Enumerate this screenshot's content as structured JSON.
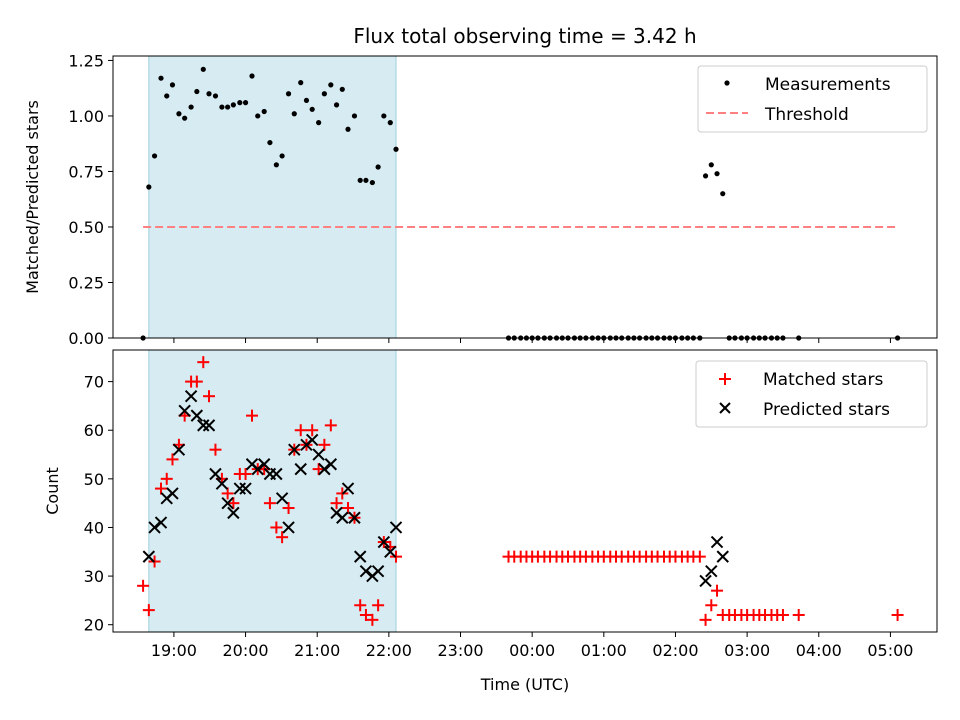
{
  "chart_data": [
    {
      "type": "scatter",
      "title": "Flux total observing time = 3.42 h",
      "xlabel": "",
      "ylabel": "Matched/Predicted stars",
      "xlim": [
        -0.85,
        10.65
      ],
      "ylim": [
        0,
        1.27
      ],
      "yticks": [
        0,
        0.25,
        0.5,
        0.75,
        1.0,
        1.25
      ],
      "ytick_labels": [
        "0.00",
        "0.25",
        "0.50",
        "0.75",
        "1.00",
        "1.25"
      ],
      "highlight_span": [
        -0.35,
        3.1
      ],
      "legend_position": "top-right",
      "series": [
        {
          "name": "Measurements",
          "kind": "dot",
          "color": "#000000",
          "points": [
            [
              -0.43,
              0.0
            ],
            [
              -0.35,
              0.68
            ],
            [
              -0.27,
              0.82
            ],
            [
              -0.18,
              1.17
            ],
            [
              -0.1,
              1.09
            ],
            [
              -0.02,
              1.14
            ],
            [
              0.07,
              1.01
            ],
            [
              0.15,
              0.99
            ],
            [
              0.24,
              1.04
            ],
            [
              0.32,
              1.11
            ],
            [
              0.41,
              1.21
            ],
            [
              0.49,
              1.1
            ],
            [
              0.58,
              1.09
            ],
            [
              0.67,
              1.04
            ],
            [
              0.75,
              1.04
            ],
            [
              0.83,
              1.05
            ],
            [
              0.92,
              1.06
            ],
            [
              1.0,
              1.06
            ],
            [
              1.09,
              1.18
            ],
            [
              1.17,
              1.0
            ],
            [
              1.26,
              1.02
            ],
            [
              1.34,
              0.88
            ],
            [
              1.43,
              0.78
            ],
            [
              1.51,
              0.82
            ],
            [
              1.6,
              1.1
            ],
            [
              1.68,
              1.01
            ],
            [
              1.77,
              1.15
            ],
            [
              1.85,
              1.07
            ],
            [
              1.93,
              1.03
            ],
            [
              2.02,
              0.97
            ],
            [
              2.1,
              1.1
            ],
            [
              2.19,
              1.14
            ],
            [
              2.27,
              1.05
            ],
            [
              2.35,
              1.12
            ],
            [
              2.43,
              0.94
            ],
            [
              2.52,
              1.0
            ],
            [
              2.6,
              0.71
            ],
            [
              2.68,
              0.71
            ],
            [
              2.77,
              0.7
            ],
            [
              2.85,
              0.77
            ],
            [
              2.93,
              1.0
            ],
            [
              3.02,
              0.97
            ],
            [
              3.1,
              0.85
            ],
            [
              4.67,
              0.0
            ],
            [
              4.75,
              0.0
            ],
            [
              4.84,
              0.0
            ],
            [
              4.92,
              0.0
            ],
            [
              5.0,
              0.0
            ],
            [
              5.08,
              0.0
            ],
            [
              5.17,
              0.0
            ],
            [
              5.25,
              0.0
            ],
            [
              5.34,
              0.0
            ],
            [
              5.42,
              0.0
            ],
            [
              5.5,
              0.0
            ],
            [
              5.59,
              0.0
            ],
            [
              5.67,
              0.0
            ],
            [
              5.75,
              0.0
            ],
            [
              5.84,
              0.0
            ],
            [
              5.92,
              0.0
            ],
            [
              6.0,
              0.0
            ],
            [
              6.09,
              0.0
            ],
            [
              6.17,
              0.0
            ],
            [
              6.25,
              0.0
            ],
            [
              6.34,
              0.0
            ],
            [
              6.42,
              0.0
            ],
            [
              6.5,
              0.0
            ],
            [
              6.59,
              0.0
            ],
            [
              6.67,
              0.0
            ],
            [
              6.75,
              0.0
            ],
            [
              6.84,
              0.0
            ],
            [
              6.92,
              0.0
            ],
            [
              7.0,
              0.0
            ],
            [
              7.09,
              0.0
            ],
            [
              7.17,
              0.0
            ],
            [
              7.25,
              0.0
            ],
            [
              7.34,
              0.0
            ],
            [
              7.42,
              0.73
            ],
            [
              7.5,
              0.78
            ],
            [
              7.58,
              0.74
            ],
            [
              7.66,
              0.65
            ],
            [
              7.75,
              0.0
            ],
            [
              7.83,
              0.0
            ],
            [
              7.92,
              0.0
            ],
            [
              8.0,
              0.0
            ],
            [
              8.09,
              0.0
            ],
            [
              8.17,
              0.0
            ],
            [
              8.25,
              0.0
            ],
            [
              8.34,
              0.0
            ],
            [
              8.42,
              0.0
            ],
            [
              8.5,
              0.0
            ],
            [
              8.72,
              0.0
            ],
            [
              10.1,
              0.0
            ]
          ]
        },
        {
          "name": "Threshold",
          "kind": "dashed-line",
          "color": "#ff8080",
          "points": [
            [
              -0.43,
              0.5
            ],
            [
              10.1,
              0.5
            ]
          ]
        }
      ]
    },
    {
      "type": "scatter",
      "title": "",
      "xlabel": "Time (UTC)",
      "ylabel": "Count",
      "xlim": [
        -0.85,
        10.65
      ],
      "ylim": [
        18.5,
        76.5
      ],
      "yticks": [
        20,
        30,
        40,
        50,
        60,
        70
      ],
      "ytick_labels": [
        "20",
        "30",
        "40",
        "50",
        "60",
        "70"
      ],
      "xticks": [
        0,
        1,
        2,
        3,
        4,
        5,
        6,
        7,
        8,
        9,
        10
      ],
      "xtick_labels": [
        "19:00",
        "20:00",
        "21:00",
        "22:00",
        "23:00",
        "00:00",
        "01:00",
        "02:00",
        "03:00",
        "04:00",
        "05:00"
      ],
      "highlight_span": [
        -0.35,
        3.1
      ],
      "legend_position": "top-right",
      "series": [
        {
          "name": "Matched stars",
          "kind": "plus",
          "color": "#ff0000",
          "points": [
            [
              -0.43,
              28
            ],
            [
              -0.35,
              23
            ],
            [
              -0.27,
              33
            ],
            [
              -0.18,
              48
            ],
            [
              -0.1,
              50
            ],
            [
              -0.02,
              54
            ],
            [
              0.07,
              57
            ],
            [
              0.15,
              63
            ],
            [
              0.24,
              70
            ],
            [
              0.32,
              70
            ],
            [
              0.41,
              74
            ],
            [
              0.49,
              67
            ],
            [
              0.58,
              56
            ],
            [
              0.67,
              50
            ],
            [
              0.75,
              47
            ],
            [
              0.83,
              45
            ],
            [
              0.92,
              51
            ],
            [
              1.0,
              51
            ],
            [
              1.09,
              63
            ],
            [
              1.17,
              52
            ],
            [
              1.26,
              52
            ],
            [
              1.34,
              45
            ],
            [
              1.43,
              40
            ],
            [
              1.51,
              38
            ],
            [
              1.6,
              44
            ],
            [
              1.68,
              56
            ],
            [
              1.77,
              60
            ],
            [
              1.85,
              57
            ],
            [
              1.93,
              60
            ],
            [
              2.02,
              52
            ],
            [
              2.1,
              57
            ],
            [
              2.19,
              61
            ],
            [
              2.27,
              45
            ],
            [
              2.35,
              47
            ],
            [
              2.43,
              44
            ],
            [
              2.52,
              42
            ],
            [
              2.6,
              24
            ],
            [
              2.68,
              22
            ],
            [
              2.77,
              21
            ],
            [
              2.85,
              24
            ],
            [
              2.93,
              37
            ],
            [
              3.02,
              36
            ],
            [
              3.1,
              34
            ],
            [
              4.67,
              34
            ],
            [
              4.75,
              34
            ],
            [
              4.84,
              34
            ],
            [
              4.92,
              34
            ],
            [
              5.0,
              34
            ],
            [
              5.08,
              34
            ],
            [
              5.17,
              34
            ],
            [
              5.25,
              34
            ],
            [
              5.34,
              34
            ],
            [
              5.42,
              34
            ],
            [
              5.5,
              34
            ],
            [
              5.59,
              34
            ],
            [
              5.67,
              34
            ],
            [
              5.75,
              34
            ],
            [
              5.84,
              34
            ],
            [
              5.92,
              34
            ],
            [
              6.0,
              34
            ],
            [
              6.09,
              34
            ],
            [
              6.17,
              34
            ],
            [
              6.25,
              34
            ],
            [
              6.34,
              34
            ],
            [
              6.42,
              34
            ],
            [
              6.5,
              34
            ],
            [
              6.59,
              34
            ],
            [
              6.67,
              34
            ],
            [
              6.75,
              34
            ],
            [
              6.84,
              34
            ],
            [
              6.92,
              34
            ],
            [
              7.0,
              34
            ],
            [
              7.09,
              34
            ],
            [
              7.17,
              34
            ],
            [
              7.25,
              34
            ],
            [
              7.34,
              34
            ],
            [
              7.42,
              21
            ],
            [
              7.5,
              24
            ],
            [
              7.58,
              27
            ],
            [
              7.66,
              22
            ],
            [
              7.75,
              22
            ],
            [
              7.83,
              22
            ],
            [
              7.92,
              22
            ],
            [
              8.0,
              22
            ],
            [
              8.09,
              22
            ],
            [
              8.17,
              22
            ],
            [
              8.25,
              22
            ],
            [
              8.34,
              22
            ],
            [
              8.42,
              22
            ],
            [
              8.5,
              22
            ],
            [
              8.72,
              22
            ],
            [
              10.1,
              22
            ]
          ]
        },
        {
          "name": "Predicted stars",
          "kind": "cross",
          "color": "#000000",
          "points": [
            [
              -0.35,
              34
            ],
            [
              -0.27,
              40
            ],
            [
              -0.18,
              41
            ],
            [
              -0.1,
              46
            ],
            [
              -0.02,
              47
            ],
            [
              0.07,
              56
            ],
            [
              0.15,
              64
            ],
            [
              0.24,
              67
            ],
            [
              0.32,
              63
            ],
            [
              0.41,
              61
            ],
            [
              0.49,
              61
            ],
            [
              0.58,
              51
            ],
            [
              0.67,
              49
            ],
            [
              0.75,
              45
            ],
            [
              0.83,
              43
            ],
            [
              0.92,
              48
            ],
            [
              1.0,
              48
            ],
            [
              1.09,
              53
            ],
            [
              1.17,
              52
            ],
            [
              1.26,
              53
            ],
            [
              1.34,
              51
            ],
            [
              1.43,
              51
            ],
            [
              1.51,
              46
            ],
            [
              1.6,
              40
            ],
            [
              1.68,
              56
            ],
            [
              1.77,
              52
            ],
            [
              1.85,
              57
            ],
            [
              1.93,
              58
            ],
            [
              2.02,
              55
            ],
            [
              2.1,
              52
            ],
            [
              2.19,
              53
            ],
            [
              2.27,
              43
            ],
            [
              2.35,
              42
            ],
            [
              2.43,
              48
            ],
            [
              2.52,
              42
            ],
            [
              2.6,
              34
            ],
            [
              2.68,
              31
            ],
            [
              2.77,
              30
            ],
            [
              2.85,
              31
            ],
            [
              2.93,
              37
            ],
            [
              3.02,
              35
            ],
            [
              3.1,
              40
            ],
            [
              7.42,
              29
            ],
            [
              7.5,
              31
            ],
            [
              7.58,
              37
            ],
            [
              7.66,
              34
            ]
          ]
        }
      ]
    }
  ]
}
